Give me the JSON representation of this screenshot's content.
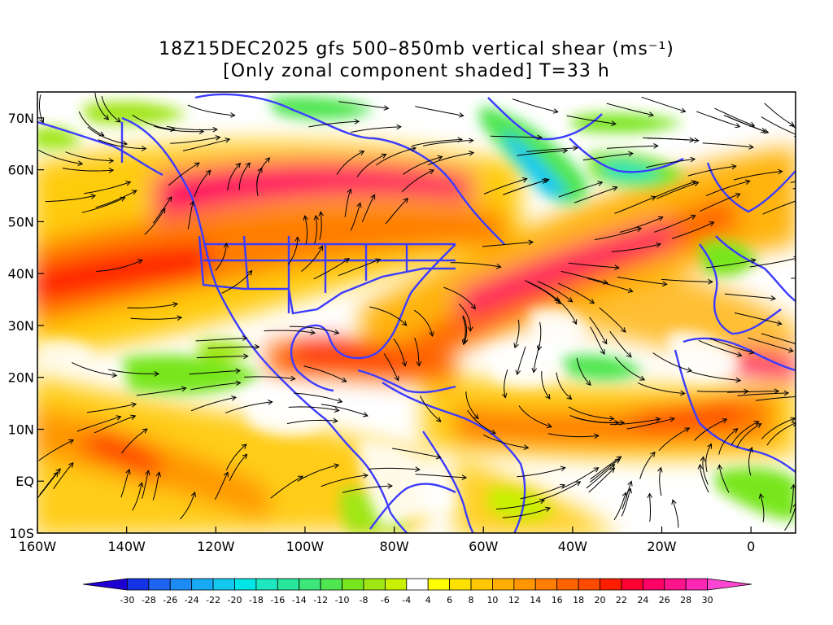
{
  "title": {
    "line1": "18Z15DEC2025 gfs 500–850mb vertical shear (ms⁻¹)",
    "line2": "[Only zonal component shaded] T=33 h"
  },
  "axes": {
    "lat_labels": [
      "70N",
      "60N",
      "50N",
      "40N",
      "30N",
      "20N",
      "10N",
      "EQ",
      "10S"
    ],
    "lon_labels": [
      "160W",
      "140W",
      "120W",
      "100W",
      "80W",
      "60W",
      "40W",
      "20W",
      "0"
    ],
    "lat_values": [
      70,
      60,
      50,
      40,
      30,
      20,
      10,
      0,
      -10
    ],
    "lon_values": [
      -160,
      -140,
      -120,
      -100,
      -80,
      -60,
      -40,
      -20,
      0
    ],
    "lon_range": [
      -160,
      10
    ],
    "lat_range": [
      -10,
      75
    ]
  },
  "colorbar": {
    "labels": [
      "-30",
      "-28",
      "-26",
      "-24",
      "-22",
      "-20",
      "-18",
      "-16",
      "-14",
      "-12",
      "-10",
      "-8",
      "-6",
      "-4",
      "4",
      "6",
      "8",
      "10",
      "12",
      "14",
      "16",
      "18",
      "20",
      "22",
      "24",
      "26",
      "28",
      "30"
    ],
    "colors": [
      "#1e00d2",
      "#1432e6",
      "#1e64f0",
      "#1e8cf5",
      "#19aaf5",
      "#14c8f0",
      "#00e6e6",
      "#1ee6be",
      "#28e69b",
      "#3ce678",
      "#50e650",
      "#78e61e",
      "#a0e614",
      "#c8f000",
      "#ffffff",
      "#ffff00",
      "#ffe100",
      "#ffc800",
      "#ffaf00",
      "#ff9600",
      "#ff7d00",
      "#ff6400",
      "#ff4b00",
      "#ff1e00",
      "#ff0032",
      "#ff0064",
      "#ff148c",
      "#ff28b4",
      "#ff46d2"
    ]
  },
  "legend_colors": {
    "coastline": "#3c3cff",
    "streamline": "#000000"
  }
}
